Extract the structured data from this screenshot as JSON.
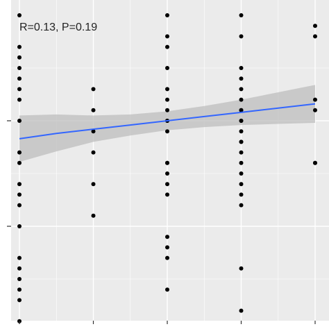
{
  "chart_data": {
    "type": "scatter",
    "annotation": "R=0.13, P=0.19",
    "xlim": [
      0.4,
      4.55
    ],
    "ylim": [
      -1.85,
      1.0
    ],
    "x_ticks": [
      1,
      2,
      3,
      4,
      5
    ],
    "y_ticks": [
      -1,
      0
    ],
    "grid": true,
    "colors": {
      "panel": "#ebebeb",
      "grid": "#ffffff",
      "points": "#000000",
      "line": "#3366ff",
      "band": "#bdbdbd"
    },
    "points": {
      "x": [
        1,
        1,
        1,
        1,
        1,
        1,
        1,
        1,
        1,
        1,
        1,
        1,
        1,
        1,
        1,
        1,
        1,
        1,
        1,
        1,
        2,
        2,
        2,
        2,
        2,
        2,
        3,
        3,
        3,
        3,
        3,
        3,
        3,
        3,
        3,
        3,
        3,
        3,
        3,
        3,
        3,
        3,
        3,
        3,
        3,
        4,
        4,
        4,
        4,
        4,
        4,
        4,
        4,
        4,
        4,
        4,
        4,
        4,
        4,
        4,
        4,
        4,
        4,
        4,
        4,
        4,
        5,
        5,
        5,
        5,
        5,
        5
      ],
      "y": [
        1.0,
        0.7,
        0.6,
        0.5,
        0.4,
        0.3,
        0.2,
        0.0,
        -0.3,
        -0.4,
        -0.6,
        -0.7,
        -0.8,
        -1.0,
        -1.3,
        -1.4,
        -1.5,
        -1.6,
        -1.7,
        -1.9,
        0.3,
        0.1,
        -0.1,
        -0.6,
        -0.9,
        -0.3,
        1.0,
        0.8,
        0.7,
        0.5,
        0.3,
        0.2,
        0.1,
        0.0,
        -0.1,
        -0.4,
        -0.5,
        -0.6,
        -0.7,
        -1.1,
        -1.3,
        -1.6,
        -1.2,
        -0.4,
        0.0,
        1.0,
        0.8,
        0.5,
        0.4,
        0.3,
        0.2,
        0.1,
        0.0,
        -0.1,
        -0.2,
        -0.3,
        -0.4,
        -0.5,
        -0.6,
        -0.7,
        -1.4,
        -1.8,
        0.1,
        0.0,
        -0.2,
        -0.8,
        0.9,
        0.8,
        0.2,
        0.1,
        -0.4,
        -0.4
      ]
    },
    "trend": {
      "x": [
        1.0,
        1.5,
        2.0,
        2.5,
        3.0,
        3.5,
        4.0,
        4.5,
        5.0
      ],
      "y": [
        -0.17,
        -0.12,
        -0.08,
        -0.04,
        0.0,
        0.04,
        0.08,
        0.12,
        0.16
      ],
      "lower": [
        -0.39,
        -0.29,
        -0.2,
        -0.14,
        -0.09,
        -0.06,
        -0.04,
        -0.03,
        -0.02
      ],
      "upper": [
        0.05,
        0.06,
        0.05,
        0.06,
        0.09,
        0.14,
        0.2,
        0.27,
        0.34
      ]
    }
  }
}
